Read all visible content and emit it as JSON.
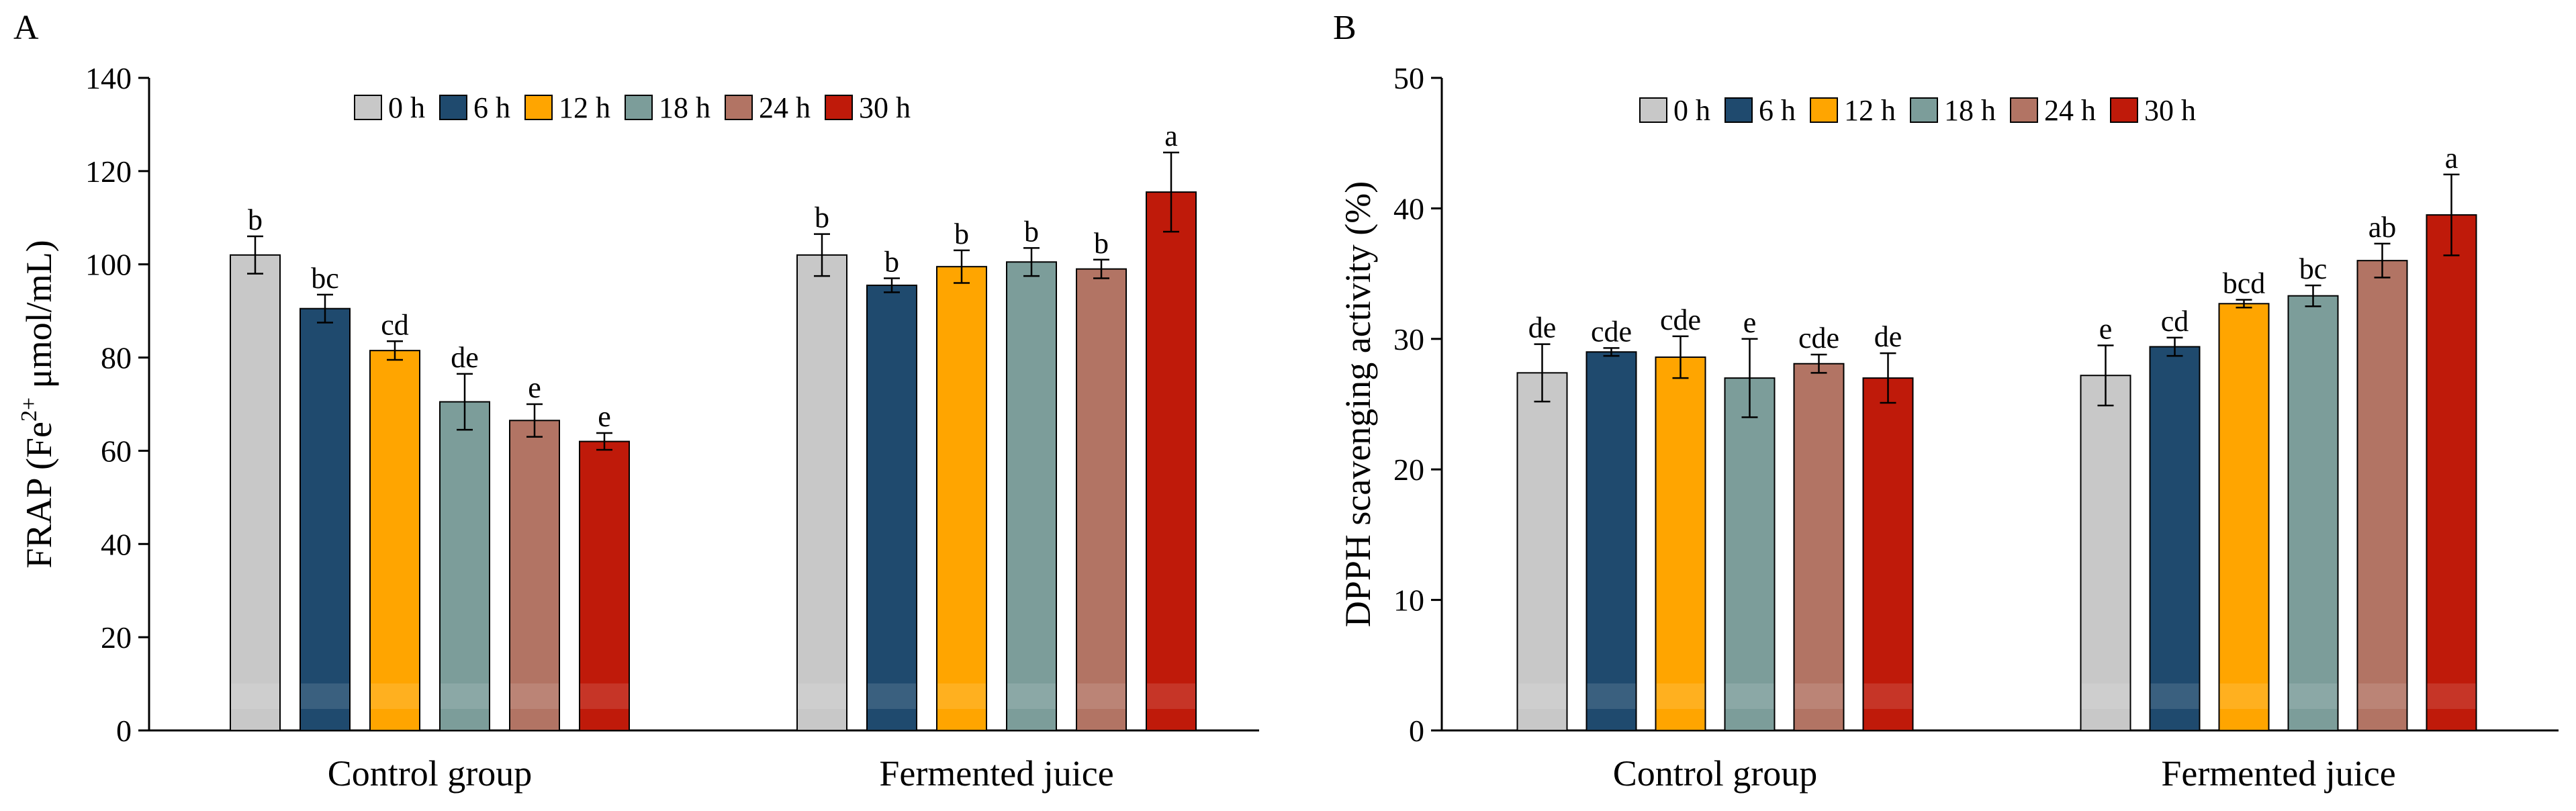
{
  "chart_data": [
    {
      "panel": "A",
      "type": "bar",
      "ylabel": {
        "prefix": "FRAP (Fe",
        "sup": "2+",
        "suffix": " μmol/mL)"
      },
      "ylim": [
        0,
        140
      ],
      "yticks": [
        0,
        20,
        40,
        60,
        80,
        100,
        120,
        140
      ],
      "ytick_labels": [
        "0",
        "20",
        "40",
        "60",
        "80",
        "100",
        "120",
        "140"
      ],
      "categories": [
        "Control group",
        "Fermented juice"
      ],
      "legend_position": "top-center",
      "series": [
        {
          "name": "0 h",
          "color": "#C8C8C8",
          "values": [
            102,
            102
          ],
          "errors": [
            4,
            4.5
          ],
          "labels": [
            "b",
            "b"
          ]
        },
        {
          "name": "6 h",
          "color": "#1F4A6E",
          "values": [
            90.5,
            95.5
          ],
          "errors": [
            3,
            1.5
          ],
          "labels": [
            "bc",
            "b"
          ]
        },
        {
          "name": "12 h",
          "color": "#FFA500",
          "values": [
            81.5,
            99.5
          ],
          "errors": [
            2,
            3.5
          ],
          "labels": [
            "cd",
            "b"
          ]
        },
        {
          "name": "18 h",
          "color": "#7C9D9A",
          "values": [
            70.5,
            100.5
          ],
          "errors": [
            6,
            3
          ],
          "labels": [
            "de",
            "b"
          ]
        },
        {
          "name": "24 h",
          "color": "#B27464",
          "values": [
            66.5,
            99
          ],
          "errors": [
            3.5,
            2
          ],
          "labels": [
            "e",
            "b"
          ]
        },
        {
          "name": "30 h",
          "color": "#BF1A0A",
          "values": [
            62,
            115.5
          ],
          "errors": [
            1.8,
            8.5
          ],
          "labels": [
            "e",
            "a"
          ]
        }
      ]
    },
    {
      "panel": "B",
      "type": "bar",
      "ylabel": {
        "prefix": "DPPH  scavenging activity (%)",
        "sup": "",
        "suffix": ""
      },
      "ylim": [
        0,
        50
      ],
      "yticks": [
        0,
        10,
        20,
        30,
        40,
        50
      ],
      "ytick_labels": [
        "0",
        "10",
        "20",
        "30",
        "40",
        "50"
      ],
      "categories": [
        "Control group",
        "Fermented juice"
      ],
      "legend_position": "top-center",
      "series": [
        {
          "name": "0 h",
          "color": "#C8C8C8",
          "values": [
            27.4,
            27.2
          ],
          "errors": [
            2.2,
            2.3
          ],
          "labels": [
            "de",
            "e"
          ]
        },
        {
          "name": "6 h",
          "color": "#1F4A6E",
          "values": [
            29.0,
            29.4
          ],
          "errors": [
            0.3,
            0.7
          ],
          "labels": [
            "cde",
            "cd"
          ]
        },
        {
          "name": "12 h",
          "color": "#FFA500",
          "values": [
            28.6,
            32.7
          ],
          "errors": [
            1.6,
            0.3
          ],
          "labels": [
            "cde",
            "bcd"
          ]
        },
        {
          "name": "18 h",
          "color": "#7C9D9A",
          "values": [
            27.0,
            33.3
          ],
          "errors": [
            3.0,
            0.8
          ],
          "labels": [
            "e",
            "bc"
          ]
        },
        {
          "name": "24 h",
          "color": "#B27464",
          "values": [
            28.1,
            36.0
          ],
          "errors": [
            0.7,
            1.3
          ],
          "labels": [
            "cde",
            "ab"
          ]
        },
        {
          "name": "30 h",
          "color": "#BF1A0A",
          "values": [
            27.0,
            39.5
          ],
          "errors": [
            1.9,
            3.1
          ],
          "labels": [
            "de",
            "a"
          ]
        }
      ]
    }
  ]
}
